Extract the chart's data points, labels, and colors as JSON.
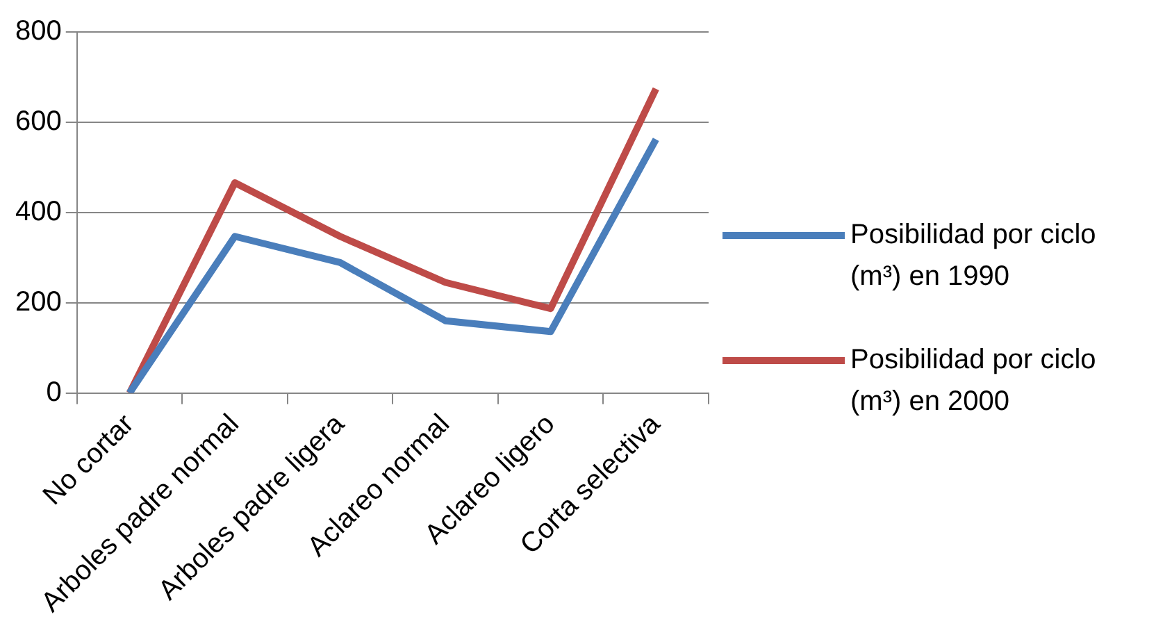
{
  "chart_data": {
    "type": "line",
    "categories": [
      "No cortar",
      "Arboles padre normal",
      "Arboles padre ligera",
      "Aclareo normal",
      "Aclareo ligero",
      "Corta selectiva"
    ],
    "series": [
      {
        "name": "Posibilidad por ciclo (m³) en 1990",
        "color": "#4a7ebb",
        "values": [
          0,
          347,
          289,
          160,
          136,
          562
        ]
      },
      {
        "name": "Posibilidad por ciclo (m³) en 2000",
        "color": "#be4b48",
        "values": [
          0,
          466,
          347,
          245,
          187,
          674
        ]
      }
    ],
    "ylim": [
      0,
      800
    ],
    "yticks": [
      0,
      200,
      400,
      600,
      800
    ],
    "grid": "y",
    "legend": "right",
    "marker": "none",
    "line_style": "solid"
  }
}
